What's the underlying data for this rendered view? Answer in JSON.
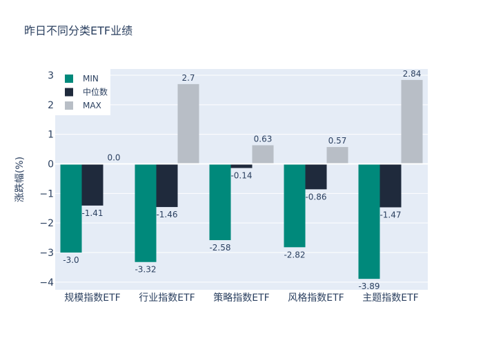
{
  "chart_data": {
    "type": "bar",
    "title": "昨日不同分类ETF业绩",
    "ylabel": "涨跌幅(%)",
    "xlabel": "",
    "categories": [
      "规模指数ETF",
      "行业指数ETF",
      "策略指数ETF",
      "风格指数ETF",
      "主题指数ETF"
    ],
    "series": [
      {
        "name": "MIN",
        "values": [
          -3.0,
          -3.32,
          -2.58,
          -2.82,
          -3.89
        ],
        "labels": [
          "-3.0",
          "-3.32",
          "-2.58",
          "-2.82",
          "-3.89"
        ],
        "color": "#00897b"
      },
      {
        "name": "中位数",
        "values": [
          -1.41,
          -1.46,
          -0.14,
          -0.86,
          -1.47
        ],
        "labels": [
          "-1.41",
          "-1.46",
          "-0.14",
          "-0.86",
          "-1.47"
        ],
        "color": "#1f2a3c"
      },
      {
        "name": "MAX",
        "values": [
          0.0,
          2.7,
          0.63,
          0.57,
          2.84
        ],
        "labels": [
          "0.0",
          "2.7",
          "0.63",
          "0.57",
          "2.84"
        ],
        "color": "#b8bec6"
      }
    ],
    "yticks": [
      "−4",
      "−3",
      "−2",
      "−1",
      "0",
      "1",
      "2",
      "3"
    ],
    "ylim": [
      -4.26,
      3.21
    ],
    "grid": true,
    "legend": "top-left"
  },
  "colors": {
    "plot_bg": "#e5ecf6",
    "grid": "#ffffff",
    "text": "#2a3f5f"
  }
}
